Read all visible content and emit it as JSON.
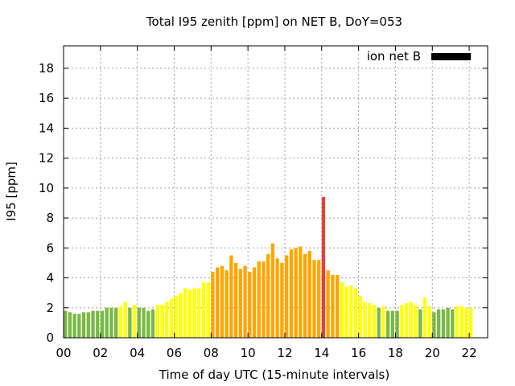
{
  "chart_data": {
    "type": "bar",
    "title": "Total I95 zenith [ppm] on NET B, DoY=053",
    "xlabel": "Time of day UTC (15-minute intervals)",
    "ylabel": "I95 [ppm]",
    "xlim": [
      0,
      23
    ],
    "ylim": [
      0,
      19.5
    ],
    "xticks": [
      0,
      2,
      4,
      6,
      8,
      10,
      12,
      14,
      16,
      18,
      20,
      22
    ],
    "xtick_labels": [
      "00",
      "02",
      "04",
      "06",
      "08",
      "10",
      "12",
      "14",
      "16",
      "18",
      "20",
      "22"
    ],
    "yticks": [
      0,
      2,
      4,
      6,
      8,
      10,
      12,
      14,
      16,
      18
    ],
    "ytick_labels": [
      "0",
      "2",
      "4",
      "6",
      "8",
      "10",
      "12",
      "14",
      "16",
      "18"
    ],
    "grid": true,
    "legend": {
      "position": "top-right",
      "label": "ion net B",
      "color": "#000000"
    },
    "series": [
      {
        "name": "ion net B",
        "x_start": 0.0,
        "x_step": 0.25,
        "values": [
          1.8,
          1.7,
          1.6,
          1.6,
          1.7,
          1.7,
          1.8,
          1.8,
          1.8,
          2.0,
          2.0,
          2.0,
          2.1,
          2.4,
          2.0,
          2.2,
          2.0,
          2.0,
          1.8,
          1.9,
          2.2,
          2.2,
          2.4,
          2.6,
          2.8,
          3.0,
          3.3,
          3.2,
          3.3,
          3.3,
          3.7,
          3.7,
          4.4,
          4.7,
          4.8,
          4.5,
          5.5,
          5.0,
          4.6,
          4.8,
          4.4,
          4.7,
          5.1,
          5.1,
          5.6,
          6.3,
          5.3,
          5.0,
          5.5,
          5.9,
          6.0,
          6.1,
          5.6,
          5.8,
          5.2,
          5.2,
          9.4,
          4.5,
          4.2,
          4.2,
          3.7,
          3.4,
          3.5,
          3.3,
          2.8,
          2.4,
          2.3,
          2.2,
          2.0,
          2.1,
          1.8,
          1.8,
          1.8,
          2.2,
          2.3,
          2.4,
          2.2,
          1.9,
          2.7,
          2.1,
          1.7,
          1.9,
          1.9,
          2.0,
          1.9,
          2.1,
          2.1,
          2.0,
          2.0
        ],
        "colors": [
          "#78b943",
          "#78b943",
          "#78b943",
          "#78b943",
          "#78b943",
          "#78b943",
          "#78b943",
          "#78b943",
          "#78b943",
          "#78b943",
          "#78b943",
          "#78b943",
          "#ffff00",
          "#ffff00",
          "#78b943",
          "#ffff00",
          "#78b943",
          "#78b943",
          "#78b943",
          "#78b943",
          "#ffff00",
          "#ffff00",
          "#ffff00",
          "#ffff00",
          "#ffff00",
          "#ffff00",
          "#ffff00",
          "#ffff00",
          "#ffff00",
          "#ffff00",
          "#ffff00",
          "#ffff00",
          "#ffa500",
          "#ffa500",
          "#ffa500",
          "#ffa500",
          "#ffa500",
          "#ffa500",
          "#ffa500",
          "#ffa500",
          "#ffa500",
          "#ffa500",
          "#ffa500",
          "#ffa500",
          "#ffa500",
          "#ffa500",
          "#ffa500",
          "#ffa500",
          "#ffa500",
          "#ffa500",
          "#ffa500",
          "#ffa500",
          "#ffa500",
          "#ffa500",
          "#ffa500",
          "#ffa500",
          "#e6413c",
          "#ffa500",
          "#ffa500",
          "#ffa500",
          "#ffff00",
          "#ffff00",
          "#ffff00",
          "#ffff00",
          "#ffff00",
          "#ffff00",
          "#ffff00",
          "#ffff00",
          "#78b943",
          "#ffff00",
          "#78b943",
          "#78b943",
          "#78b943",
          "#ffff00",
          "#ffff00",
          "#ffff00",
          "#ffff00",
          "#78b943",
          "#ffff00",
          "#ffff00",
          "#78b943",
          "#78b943",
          "#78b943",
          "#78b943",
          "#78b943",
          "#ffff00",
          "#ffff00",
          "#ffff00",
          "#ffff00"
        ]
      }
    ]
  }
}
